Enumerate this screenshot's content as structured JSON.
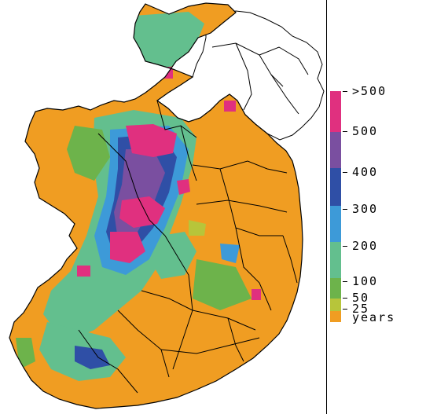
{
  "legend": {
    "units_label": "years",
    "classes": [
      {
        "label": ">500",
        "color": "#e0307f"
      },
      {
        "label": "500",
        "color": "#7a4fa0"
      },
      {
        "label": "400",
        "color": "#2f4fa6"
      },
      {
        "label": "300",
        "color": "#3d9ad8"
      },
      {
        "label": "200",
        "color": "#63bf8e"
      },
      {
        "label": "100",
        "color": "#6db34b"
      },
      {
        "label": "50",
        "color": "#b7c53a"
      },
      {
        "label": "25",
        "color": "#f09d22"
      }
    ]
  },
  "map_colors": {
    "land_default": "#f09d22",
    "unmapped_region": "#ffffff",
    "borders": "#000000"
  }
}
